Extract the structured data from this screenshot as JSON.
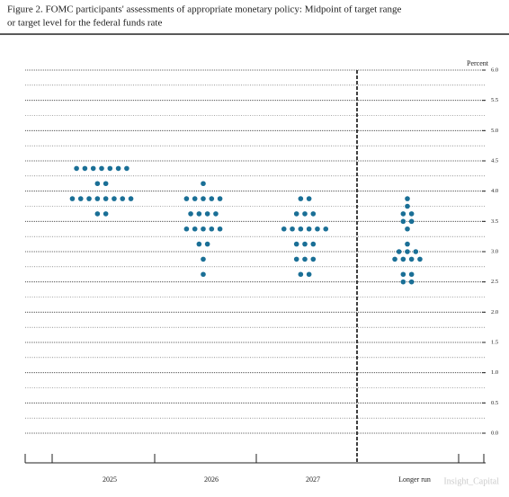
{
  "chart_data": {
    "type": "dot",
    "title": [
      "Figure 2.  FOMC participants' assessments of appropriate monetary policy:  Midpoint of target range",
      "or target level for the federal funds rate"
    ],
    "y_label": "Percent",
    "watermark": "Insight_Capital",
    "categories": [
      "2025",
      "2026",
      "2027",
      "Longer run"
    ],
    "values": [
      [
        4.375,
        4.375,
        4.375,
        4.375,
        4.375,
        4.375,
        4.375,
        4.125,
        4.125,
        3.875,
        3.875,
        3.875,
        3.875,
        3.875,
        3.875,
        3.875,
        3.875,
        3.625,
        3.625
      ],
      [
        4.125,
        3.875,
        3.875,
        3.875,
        3.875,
        3.875,
        3.625,
        3.625,
        3.625,
        3.625,
        3.375,
        3.375,
        3.375,
        3.375,
        3.375,
        3.125,
        3.125,
        2.875,
        2.625
      ],
      [
        3.875,
        3.875,
        3.625,
        3.625,
        3.625,
        3.375,
        3.375,
        3.375,
        3.375,
        3.375,
        3.375,
        3.125,
        3.125,
        3.125,
        2.875,
        2.875,
        2.875,
        2.625,
        2.625
      ],
      [
        3.875,
        3.75,
        3.625,
        3.625,
        3.5,
        3.5,
        3.375,
        3.125,
        3.0,
        3.0,
        3.0,
        2.875,
        2.875,
        2.875,
        2.875,
        2.625,
        2.625,
        2.5,
        2.5
      ]
    ],
    "color": "#1a6f96",
    "ylim": [
      0,
      6
    ],
    "yticks": [
      {
        "value": 0,
        "label": "0.0"
      },
      {
        "value": 0.5,
        "label": "0.5"
      },
      {
        "value": 1,
        "label": "1.0"
      },
      {
        "value": 1.5,
        "label": "1.5"
      },
      {
        "value": 2,
        "label": "2.0"
      },
      {
        "value": 2.5,
        "label": "2.5"
      },
      {
        "value": 3,
        "label": "3.0"
      },
      {
        "value": 3.5,
        "label": "3.5"
      },
      {
        "value": 4,
        "label": "4.0"
      },
      {
        "value": 4.5,
        "label": "4.5"
      },
      {
        "value": 5,
        "label": "5.0"
      },
      {
        "value": 5.5,
        "label": "5.5"
      },
      {
        "value": 6,
        "label": "6.0"
      }
    ],
    "minor_yticks": [
      0.25,
      0.75,
      1.25,
      1.75,
      2.25,
      2.75,
      3.25,
      3.75,
      4.25,
      4.75,
      5.25,
      5.75
    ],
    "grid": true
  }
}
